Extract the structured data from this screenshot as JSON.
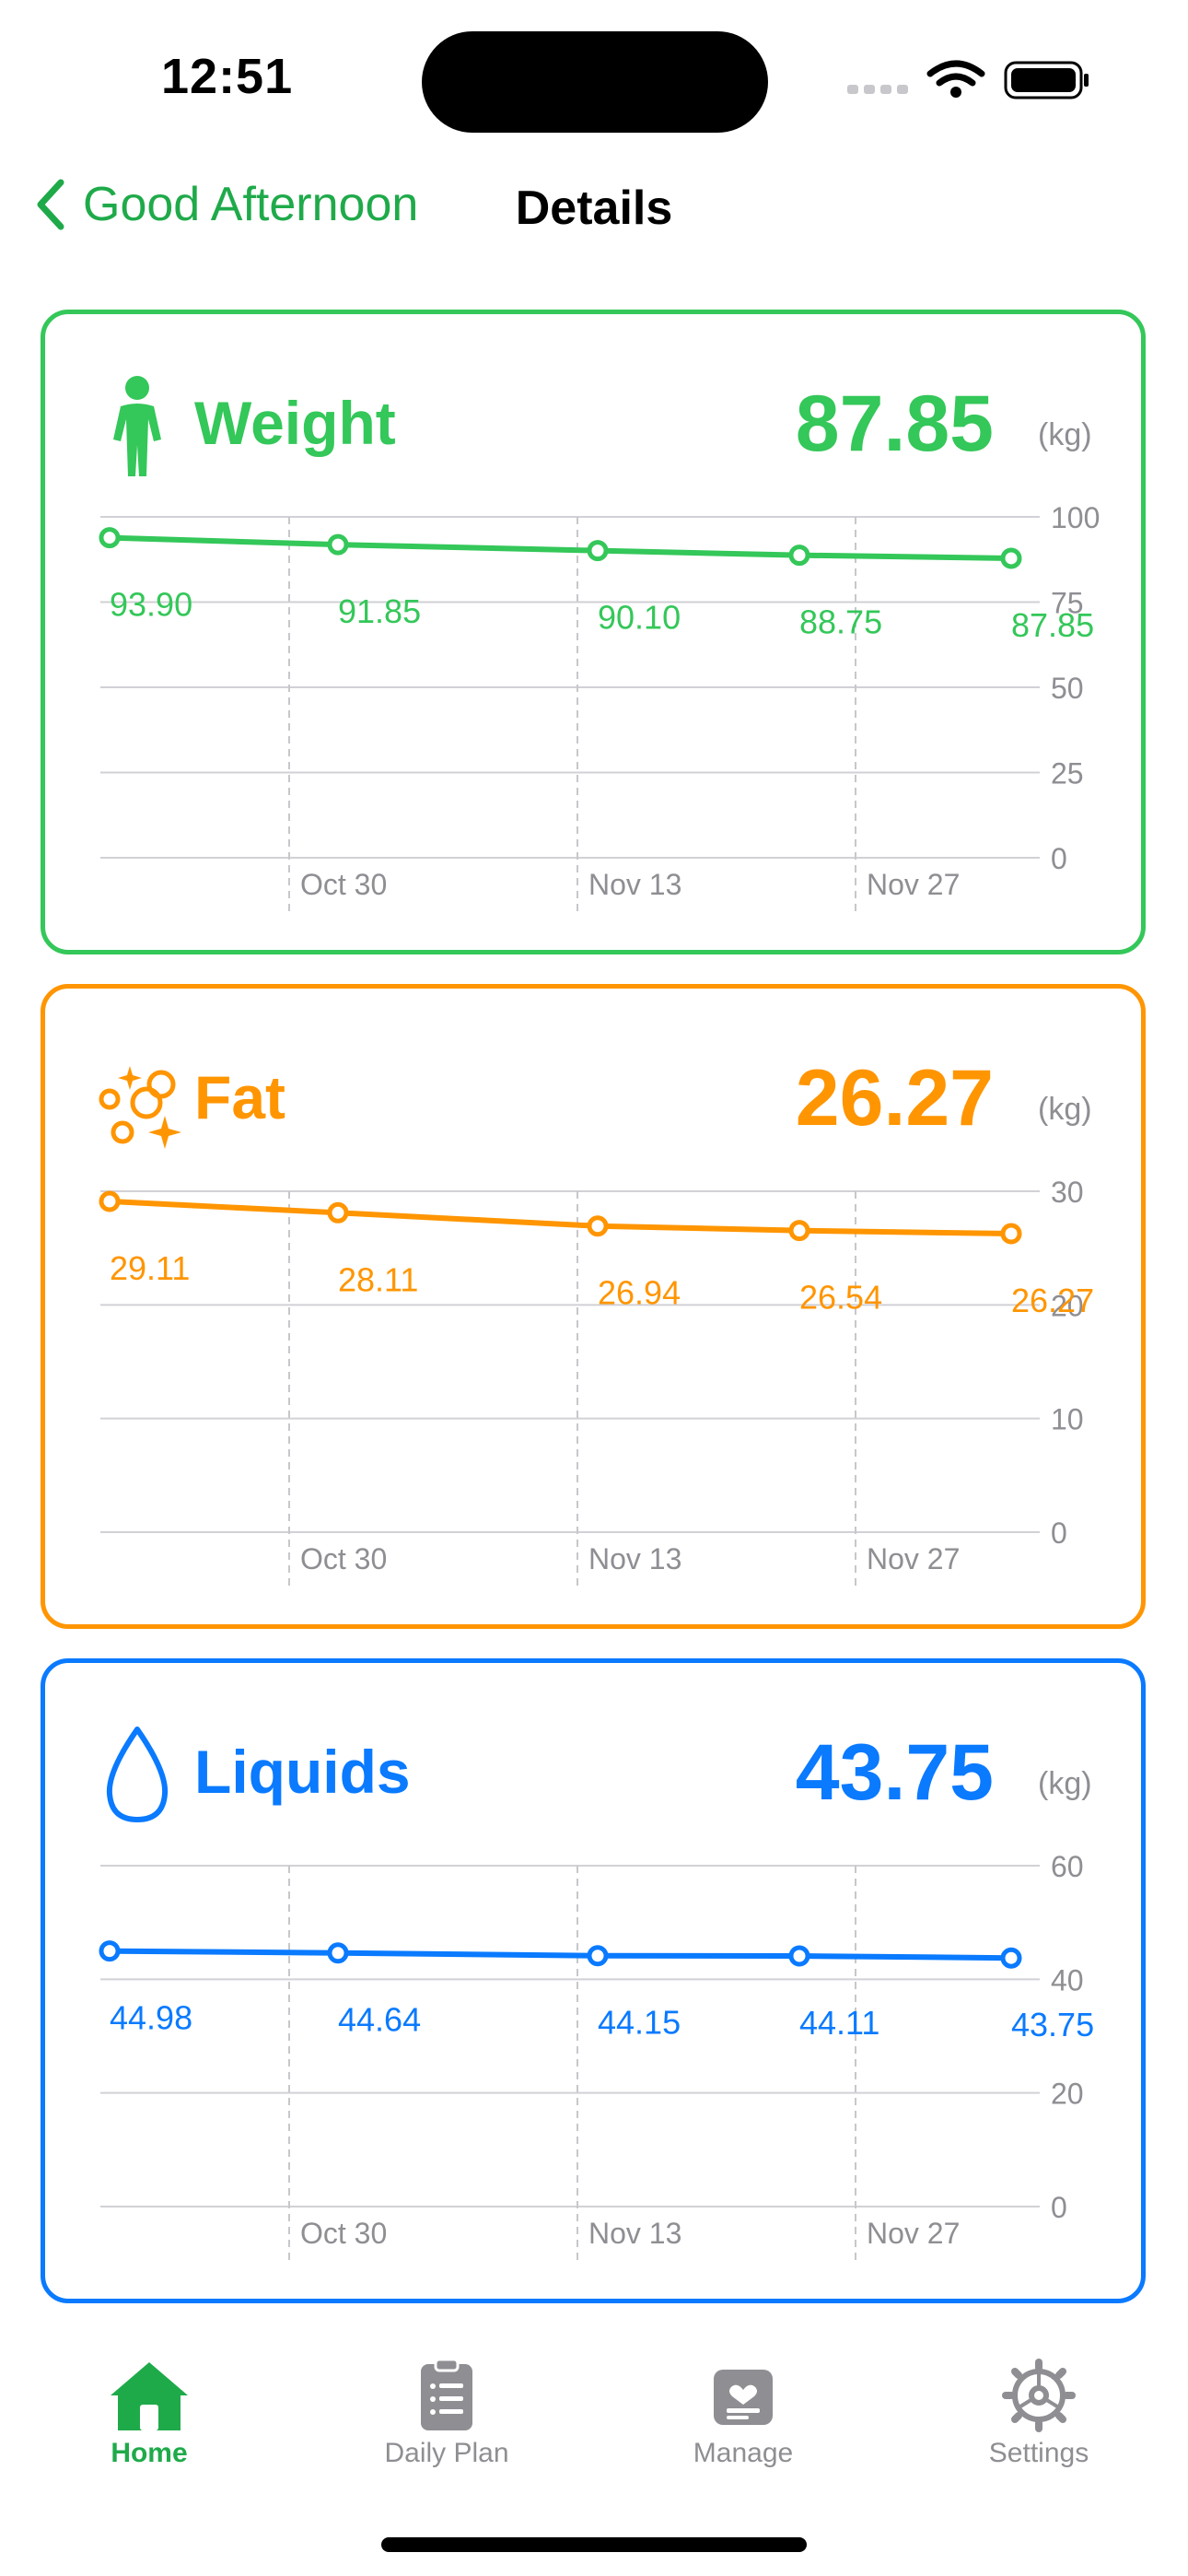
{
  "status": {
    "time": "12:51"
  },
  "nav": {
    "back_label": "Good Afternoon",
    "title": "Details"
  },
  "cards": [
    {
      "key": "weight",
      "title": "Weight",
      "value": "87.85",
      "unit": "(kg)",
      "color": "#34c759",
      "icon": "person-standing-icon",
      "chart_data": {
        "type": "line",
        "x": [
          "Oct 23",
          "Nov 1",
          "Nov 15",
          "Nov 23",
          "Dec 1"
        ],
        "values": [
          93.9,
          91.85,
          90.1,
          88.75,
          87.85
        ],
        "value_labels": [
          "93.90",
          "91.85",
          "90.10",
          "88.75",
          "87.85"
        ],
        "x_tick_labels": [
          "Oct 30",
          "Nov 13",
          "Nov 27"
        ],
        "y_ticks": [
          0,
          25,
          50,
          75,
          100
        ],
        "y_tick_labels": [
          "0",
          "25",
          "50",
          "75",
          "100"
        ],
        "ylim": [
          0,
          100
        ],
        "grid": true
      }
    },
    {
      "key": "fat",
      "title": "Fat",
      "value": "26.27",
      "unit": "(kg)",
      "color": "#ff9500",
      "icon": "bubbles-sparkle-icon",
      "chart_data": {
        "type": "line",
        "x": [
          "Oct 23",
          "Nov 1",
          "Nov 15",
          "Nov 23",
          "Dec 1"
        ],
        "values": [
          29.11,
          28.11,
          26.94,
          26.54,
          26.27
        ],
        "value_labels": [
          "29.11",
          "28.11",
          "26.94",
          "26.54",
          "26.27"
        ],
        "x_tick_labels": [
          "Oct 30",
          "Nov 13",
          "Nov 27"
        ],
        "y_ticks": [
          0,
          10,
          20,
          30
        ],
        "y_tick_labels": [
          "0",
          "10",
          "20",
          "30"
        ],
        "ylim": [
          0,
          30
        ],
        "grid": true
      }
    },
    {
      "key": "liquids",
      "title": "Liquids",
      "value": "43.75",
      "unit": "(kg)",
      "color": "#0a7aff",
      "icon": "water-drop-icon",
      "chart_data": {
        "type": "line",
        "x": [
          "Oct 23",
          "Nov 1",
          "Nov 15",
          "Nov 23",
          "Dec 1"
        ],
        "values": [
          44.98,
          44.64,
          44.15,
          44.11,
          43.75
        ],
        "value_labels": [
          "44.98",
          "44.64",
          "44.15",
          "44.11",
          "43.75"
        ],
        "x_tick_labels": [
          "Oct 30",
          "Nov 13",
          "Nov 27"
        ],
        "y_ticks": [
          0,
          20,
          40,
          60
        ],
        "y_tick_labels": [
          "0",
          "20",
          "40",
          "60"
        ],
        "ylim": [
          0,
          60
        ],
        "grid": true
      }
    }
  ],
  "tabs": [
    {
      "label": "Home",
      "icon": "house-icon",
      "active": true
    },
    {
      "label": "Daily Plan",
      "icon": "clipboard-list-icon",
      "active": false
    },
    {
      "label": "Manage",
      "icon": "heart-card-icon",
      "active": false
    },
    {
      "label": "Settings",
      "icon": "gear-icon",
      "active": false
    }
  ],
  "colors": {
    "active_tab": "#1faa4a",
    "inactive_tab": "#8e8e93",
    "axis_text": "#8e8e93"
  }
}
